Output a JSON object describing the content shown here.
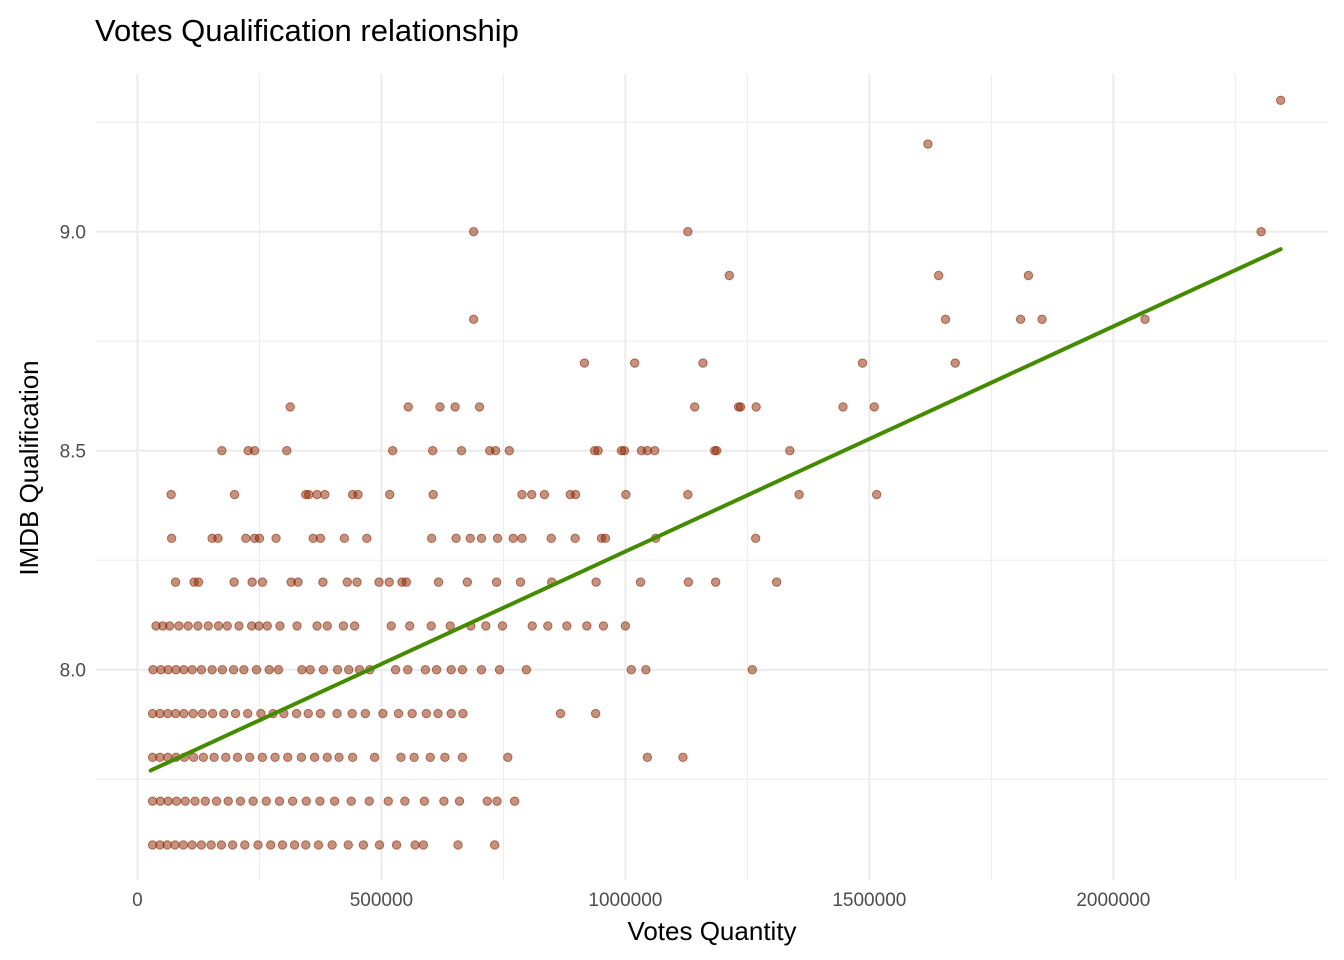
{
  "chart_data": {
    "type": "scatter",
    "title": "Votes Qualification relationship",
    "xlabel": "Votes Quantity",
    "ylabel": "IMDB Qualification",
    "xlim": [
      -85000,
      2440000
    ],
    "ylim": [
      7.52,
      9.36
    ],
    "x_ticks": [
      0,
      500000,
      1000000,
      1500000,
      2000000
    ],
    "x_tick_labels": [
      "0",
      "500000",
      "1000000",
      "1500000",
      "2000000"
    ],
    "y_ticks": [
      8.0,
      8.5,
      9.0
    ],
    "y_tick_labels": [
      "8.0",
      "8.5",
      "9.0"
    ],
    "grid": true,
    "colors": {
      "points": "#8B2500",
      "trend": "#458B00",
      "grid": "#ebebeb"
    },
    "trend_line": {
      "type": "linear",
      "x": [
        27000,
        2343000
      ],
      "y": [
        7.77,
        8.96
      ]
    },
    "points": [
      [
        2343000,
        9.3
      ],
      [
        1620000,
        9.2
      ],
      [
        2303000,
        9.0
      ],
      [
        689000,
        9.0
      ],
      [
        1128000,
        9.0
      ],
      [
        1213000,
        8.9
      ],
      [
        1642000,
        8.9
      ],
      [
        1826000,
        8.9
      ],
      [
        689000,
        8.8
      ],
      [
        1656000,
        8.8
      ],
      [
        1810000,
        8.8
      ],
      [
        1854000,
        8.8
      ],
      [
        2065000,
        8.8
      ],
      [
        916000,
        8.7
      ],
      [
        1019000,
        8.7
      ],
      [
        1159000,
        8.7
      ],
      [
        1486000,
        8.7
      ],
      [
        1676000,
        8.7
      ],
      [
        313000,
        8.6
      ],
      [
        555000,
        8.6
      ],
      [
        620000,
        8.6
      ],
      [
        651000,
        8.6
      ],
      [
        701000,
        8.6
      ],
      [
        1142000,
        8.6
      ],
      [
        1232000,
        8.6
      ],
      [
        1236000,
        8.6
      ],
      [
        1268000,
        8.6
      ],
      [
        1446000,
        8.6
      ],
      [
        1510000,
        8.6
      ],
      [
        173000,
        8.5
      ],
      [
        227000,
        8.5
      ],
      [
        240000,
        8.5
      ],
      [
        306000,
        8.5
      ],
      [
        523000,
        8.5
      ],
      [
        605000,
        8.5
      ],
      [
        664000,
        8.5
      ],
      [
        722000,
        8.5
      ],
      [
        734000,
        8.5
      ],
      [
        762000,
        8.5
      ],
      [
        937000,
        8.5
      ],
      [
        944000,
        8.5
      ],
      [
        992000,
        8.5
      ],
      [
        998000,
        8.5
      ],
      [
        1033000,
        8.5
      ],
      [
        1045000,
        8.5
      ],
      [
        1060000,
        8.5
      ],
      [
        1183000,
        8.5
      ],
      [
        1187000,
        8.5
      ],
      [
        1337000,
        8.5
      ],
      [
        69000,
        8.4
      ],
      [
        199000,
        8.4
      ],
      [
        345000,
        8.4
      ],
      [
        351000,
        8.4
      ],
      [
        368000,
        8.4
      ],
      [
        384000,
        8.4
      ],
      [
        441000,
        8.4
      ],
      [
        452000,
        8.4
      ],
      [
        517000,
        8.4
      ],
      [
        606000,
        8.4
      ],
      [
        788000,
        8.4
      ],
      [
        808000,
        8.4
      ],
      [
        834000,
        8.4
      ],
      [
        887000,
        8.4
      ],
      [
        898000,
        8.4
      ],
      [
        1001000,
        8.4
      ],
      [
        1128000,
        8.4
      ],
      [
        1356000,
        8.4
      ],
      [
        1515000,
        8.4
      ],
      [
        70000,
        8.3
      ],
      [
        153000,
        8.3
      ],
      [
        165000,
        8.3
      ],
      [
        222000,
        8.3
      ],
      [
        240000,
        8.3
      ],
      [
        250000,
        8.3
      ],
      [
        284000,
        8.3
      ],
      [
        360000,
        8.3
      ],
      [
        375000,
        8.3
      ],
      [
        424000,
        8.3
      ],
      [
        470000,
        8.3
      ],
      [
        603000,
        8.3
      ],
      [
        653000,
        8.3
      ],
      [
        682000,
        8.3
      ],
      [
        705000,
        8.3
      ],
      [
        738000,
        8.3
      ],
      [
        770000,
        8.3
      ],
      [
        788000,
        8.3
      ],
      [
        848000,
        8.3
      ],
      [
        897000,
        8.3
      ],
      [
        951000,
        8.3
      ],
      [
        959000,
        8.3
      ],
      [
        1062000,
        8.3
      ],
      [
        1267000,
        8.3
      ],
      [
        78000,
        8.2
      ],
      [
        116000,
        8.2
      ],
      [
        125000,
        8.2
      ],
      [
        198000,
        8.2
      ],
      [
        235000,
        8.2
      ],
      [
        256000,
        8.2
      ],
      [
        315000,
        8.2
      ],
      [
        329000,
        8.2
      ],
      [
        380000,
        8.2
      ],
      [
        430000,
        8.2
      ],
      [
        450000,
        8.2
      ],
      [
        495000,
        8.2
      ],
      [
        516000,
        8.2
      ],
      [
        542000,
        8.2
      ],
      [
        551000,
        8.2
      ],
      [
        617000,
        8.2
      ],
      [
        676000,
        8.2
      ],
      [
        736000,
        8.2
      ],
      [
        785000,
        8.2
      ],
      [
        849000,
        8.2
      ],
      [
        940000,
        8.2
      ],
      [
        1031000,
        8.2
      ],
      [
        1129000,
        8.2
      ],
      [
        1185000,
        8.2
      ],
      [
        1310000,
        8.2
      ],
      [
        38000,
        8.1
      ],
      [
        52000,
        8.1
      ],
      [
        66000,
        8.1
      ],
      [
        85000,
        8.1
      ],
      [
        104000,
        8.1
      ],
      [
        124000,
        8.1
      ],
      [
        145000,
        8.1
      ],
      [
        166000,
        8.1
      ],
      [
        184000,
        8.1
      ],
      [
        208000,
        8.1
      ],
      [
        234000,
        8.1
      ],
      [
        249000,
        8.1
      ],
      [
        266000,
        8.1
      ],
      [
        292000,
        8.1
      ],
      [
        327000,
        8.1
      ],
      [
        368000,
        8.1
      ],
      [
        389000,
        8.1
      ],
      [
        422000,
        8.1
      ],
      [
        445000,
        8.1
      ],
      [
        520000,
        8.1
      ],
      [
        558000,
        8.1
      ],
      [
        602000,
        8.1
      ],
      [
        641000,
        8.1
      ],
      [
        683000,
        8.1
      ],
      [
        714000,
        8.1
      ],
      [
        748000,
        8.1
      ],
      [
        809000,
        8.1
      ],
      [
        841000,
        8.1
      ],
      [
        880000,
        8.1
      ],
      [
        921000,
        8.1
      ],
      [
        955000,
        8.1
      ],
      [
        1000000,
        8.1
      ],
      [
        32000,
        8.0
      ],
      [
        48000,
        8.0
      ],
      [
        63000,
        8.0
      ],
      [
        79000,
        8.0
      ],
      [
        95000,
        8.0
      ],
      [
        112000,
        8.0
      ],
      [
        131000,
        8.0
      ],
      [
        153000,
        8.0
      ],
      [
        174000,
        8.0
      ],
      [
        197000,
        8.0
      ],
      [
        218000,
        8.0
      ],
      [
        244000,
        8.0
      ],
      [
        270000,
        8.0
      ],
      [
        289000,
        8.0
      ],
      [
        337000,
        8.0
      ],
      [
        354000,
        8.0
      ],
      [
        381000,
        8.0
      ],
      [
        410000,
        8.0
      ],
      [
        433000,
        8.0
      ],
      [
        455000,
        8.0
      ],
      [
        476000,
        8.0
      ],
      [
        529000,
        8.0
      ],
      [
        554000,
        8.0
      ],
      [
        590000,
        8.0
      ],
      [
        613000,
        8.0
      ],
      [
        643000,
        8.0
      ],
      [
        666000,
        8.0
      ],
      [
        705000,
        8.0
      ],
      [
        742000,
        8.0
      ],
      [
        797000,
        8.0
      ],
      [
        1012000,
        8.0
      ],
      [
        1042000,
        8.0
      ],
      [
        1260000,
        8.0
      ],
      [
        31000,
        7.9
      ],
      [
        46000,
        7.9
      ],
      [
        62000,
        7.9
      ],
      [
        78000,
        7.9
      ],
      [
        95000,
        7.9
      ],
      [
        114000,
        7.9
      ],
      [
        133000,
        7.9
      ],
      [
        154000,
        7.9
      ],
      [
        177000,
        7.9
      ],
      [
        201000,
        7.9
      ],
      [
        226000,
        7.9
      ],
      [
        253000,
        7.9
      ],
      [
        278000,
        7.9
      ],
      [
        300000,
        7.9
      ],
      [
        326000,
        7.9
      ],
      [
        350000,
        7.9
      ],
      [
        375000,
        7.9
      ],
      [
        409000,
        7.9
      ],
      [
        440000,
        7.9
      ],
      [
        467000,
        7.9
      ],
      [
        503000,
        7.9
      ],
      [
        535000,
        7.9
      ],
      [
        563000,
        7.9
      ],
      [
        592000,
        7.9
      ],
      [
        616000,
        7.9
      ],
      [
        643000,
        7.9
      ],
      [
        667000,
        7.9
      ],
      [
        867000,
        7.9
      ],
      [
        939000,
        7.9
      ],
      [
        31000,
        7.8
      ],
      [
        46000,
        7.8
      ],
      [
        62000,
        7.8
      ],
      [
        79000,
        7.8
      ],
      [
        96000,
        7.8
      ],
      [
        115000,
        7.8
      ],
      [
        135000,
        7.8
      ],
      [
        157000,
        7.8
      ],
      [
        181000,
        7.8
      ],
      [
        205000,
        7.8
      ],
      [
        230000,
        7.8
      ],
      [
        256000,
        7.8
      ],
      [
        282000,
        7.8
      ],
      [
        308000,
        7.8
      ],
      [
        336000,
        7.8
      ],
      [
        363000,
        7.8
      ],
      [
        389000,
        7.8
      ],
      [
        413000,
        7.8
      ],
      [
        441000,
        7.8
      ],
      [
        486000,
        7.8
      ],
      [
        540000,
        7.8
      ],
      [
        567000,
        7.8
      ],
      [
        600000,
        7.8
      ],
      [
        630000,
        7.8
      ],
      [
        666000,
        7.8
      ],
      [
        759000,
        7.8
      ],
      [
        1045000,
        7.8
      ],
      [
        1118000,
        7.8
      ],
      [
        31000,
        7.7
      ],
      [
        47000,
        7.7
      ],
      [
        63000,
        7.7
      ],
      [
        80000,
        7.7
      ],
      [
        98000,
        7.7
      ],
      [
        118000,
        7.7
      ],
      [
        139000,
        7.7
      ],
      [
        162000,
        7.7
      ],
      [
        186000,
        7.7
      ],
      [
        211000,
        7.7
      ],
      [
        237000,
        7.7
      ],
      [
        264000,
        7.7
      ],
      [
        291000,
        7.7
      ],
      [
        318000,
        7.7
      ],
      [
        346000,
        7.7
      ],
      [
        374000,
        7.7
      ],
      [
        404000,
        7.7
      ],
      [
        438000,
        7.7
      ],
      [
        475000,
        7.7
      ],
      [
        514000,
        7.7
      ],
      [
        548000,
        7.7
      ],
      [
        588000,
        7.7
      ],
      [
        628000,
        7.7
      ],
      [
        660000,
        7.7
      ],
      [
        717000,
        7.7
      ],
      [
        737000,
        7.7
      ],
      [
        773000,
        7.7
      ],
      [
        31000,
        7.6
      ],
      [
        46000,
        7.6
      ],
      [
        61000,
        7.6
      ],
      [
        77000,
        7.6
      ],
      [
        94000,
        7.6
      ],
      [
        112000,
        7.6
      ],
      [
        131000,
        7.6
      ],
      [
        151000,
        7.6
      ],
      [
        172000,
        7.6
      ],
      [
        195000,
        7.6
      ],
      [
        220000,
        7.6
      ],
      [
        247000,
        7.6
      ],
      [
        273000,
        7.6
      ],
      [
        297000,
        7.6
      ],
      [
        322000,
        7.6
      ],
      [
        345000,
        7.6
      ],
      [
        371000,
        7.6
      ],
      [
        399000,
        7.6
      ],
      [
        432000,
        7.6
      ],
      [
        463000,
        7.6
      ],
      [
        496000,
        7.6
      ],
      [
        531000,
        7.6
      ],
      [
        569000,
        7.6
      ],
      [
        586000,
        7.6
      ],
      [
        657000,
        7.6
      ],
      [
        732000,
        7.6
      ]
    ]
  }
}
